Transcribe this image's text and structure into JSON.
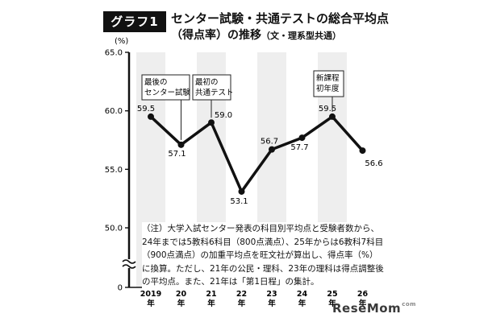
{
  "header": {
    "badge": "グラフ1",
    "title_line1": "センター試験・共通テストの総合平均点",
    "title_line2": "（得点率）の推移",
    "title_line2_sub": "（文・理系型共通）"
  },
  "note": "（注）大学入試センター発表の科目別平均点と受験者数から、24年までは5教科6科目（800点満点）、25年からは6教科7科目（900点満点）の加重平均点を旺文社が算出し、得点率（%）に換算。ただし、21年の公民・理科、23年の理科は得点調整後の平均点。また、21年は「第1日程」の集計。",
  "logo": {
    "text": "ReseMom",
    "suffix": "com"
  },
  "colors": {
    "line": "#111111",
    "band": "#eeeeee"
  },
  "chart_data": {
    "type": "line",
    "title": "センター試験・共通テストの総合平均点（得点率）の推移",
    "ylabel": "(%)",
    "ylim": [
      50,
      65
    ],
    "yticks": [
      "65.0",
      "60.0",
      "55.0",
      "50.0",
      "0"
    ],
    "axis_break": true,
    "grid": false,
    "categories": [
      {
        "top": "2019",
        "bottom": "年"
      },
      {
        "top": "20",
        "bottom": "年"
      },
      {
        "top": "21",
        "bottom": "年"
      },
      {
        "top": "22",
        "bottom": "年"
      },
      {
        "top": "23",
        "bottom": "年"
      },
      {
        "top": "24",
        "bottom": "年"
      },
      {
        "top": "25",
        "bottom": "年"
      },
      {
        "top": "26",
        "bottom": "年"
      }
    ],
    "values": [
      59.5,
      57.1,
      59.0,
      53.1,
      56.7,
      57.7,
      59.5,
      56.6
    ],
    "labels": [
      "59.5",
      "57.1",
      "59.0",
      "53.1",
      "56.7",
      "57.7",
      "59.5",
      "56.6"
    ],
    "annotations": [
      {
        "index": 1,
        "lines": [
          "最後の",
          "センター試験"
        ]
      },
      {
        "index": 2,
        "lines": [
          "最初の",
          "共通テスト"
        ]
      },
      {
        "index": 6,
        "lines": [
          "新課程",
          "初年度"
        ]
      }
    ]
  }
}
